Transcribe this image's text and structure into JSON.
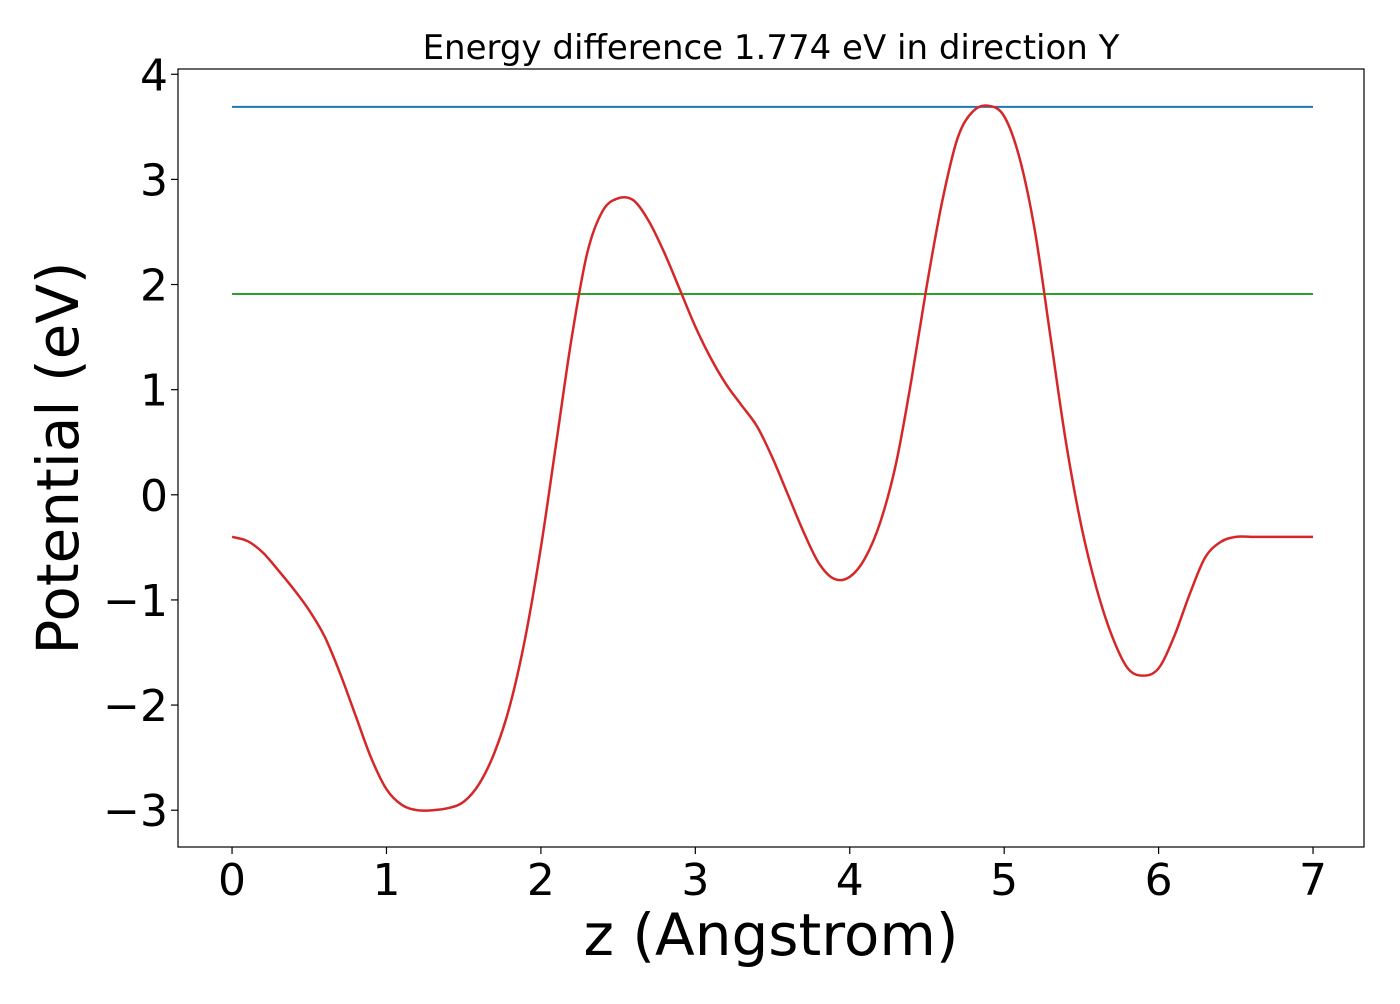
{
  "chart_data": {
    "type": "line",
    "title": "Energy difference 1.774 eV in direction Y",
    "xlabel": "z (Angstrom)",
    "ylabel": "Potential (eV)",
    "xlim": [
      -0.35,
      7.33
    ],
    "ylim": [
      -3.35,
      4.05
    ],
    "xticks": [
      0,
      1,
      2,
      3,
      4,
      5,
      6,
      7
    ],
    "yticks": [
      -3,
      -2,
      -1,
      0,
      1,
      2,
      3,
      4
    ],
    "grid": false,
    "legend": "none",
    "series": [
      {
        "color": "#d62728",
        "style": "curve",
        "x": [
          0.0,
          0.1,
          0.2,
          0.3,
          0.4,
          0.5,
          0.6,
          0.7,
          0.8,
          0.9,
          1.0,
          1.1,
          1.2,
          1.3,
          1.4,
          1.5,
          1.6,
          1.7,
          1.8,
          1.9,
          2.0,
          2.1,
          2.2,
          2.3,
          2.4,
          2.5,
          2.6,
          2.7,
          2.8,
          2.9,
          3.0,
          3.1,
          3.2,
          3.3,
          3.4,
          3.5,
          3.6,
          3.7,
          3.8,
          3.9,
          4.0,
          4.1,
          4.2,
          4.3,
          4.4,
          4.5,
          4.6,
          4.7,
          4.8,
          4.9,
          5.0,
          5.1,
          5.2,
          5.3,
          5.4,
          5.5,
          5.6,
          5.7,
          5.8,
          5.9,
          6.0,
          6.1,
          6.2,
          6.3,
          6.4,
          6.5,
          6.6,
          6.7,
          6.8,
          6.9,
          7.0
        ],
        "y": [
          -0.4,
          -0.44,
          -0.55,
          -0.72,
          -0.9,
          -1.1,
          -1.35,
          -1.7,
          -2.1,
          -2.5,
          -2.8,
          -2.95,
          -3.0,
          -3.0,
          -2.98,
          -2.92,
          -2.75,
          -2.45,
          -2.0,
          -1.35,
          -0.5,
          0.5,
          1.5,
          2.3,
          2.7,
          2.82,
          2.8,
          2.6,
          2.3,
          1.95,
          1.6,
          1.3,
          1.05,
          0.85,
          0.65,
          0.35,
          0.0,
          -0.35,
          -0.65,
          -0.8,
          -0.78,
          -0.6,
          -0.25,
          0.3,
          1.1,
          2.0,
          2.8,
          3.4,
          3.65,
          3.7,
          3.6,
          3.2,
          2.5,
          1.5,
          0.5,
          -0.3,
          -0.9,
          -1.35,
          -1.65,
          -1.72,
          -1.65,
          -1.35,
          -0.95,
          -0.6,
          -0.45,
          -0.4,
          -0.4,
          -0.4,
          -0.4,
          -0.4,
          -0.4
        ]
      },
      {
        "color": "#1f77b4",
        "style": "hline",
        "x": [
          0,
          7
        ],
        "y": [
          3.69,
          3.69
        ]
      },
      {
        "color": "#2ca02c",
        "style": "hline",
        "x": [
          0,
          7
        ],
        "y": [
          1.91,
          1.91
        ]
      }
    ]
  }
}
